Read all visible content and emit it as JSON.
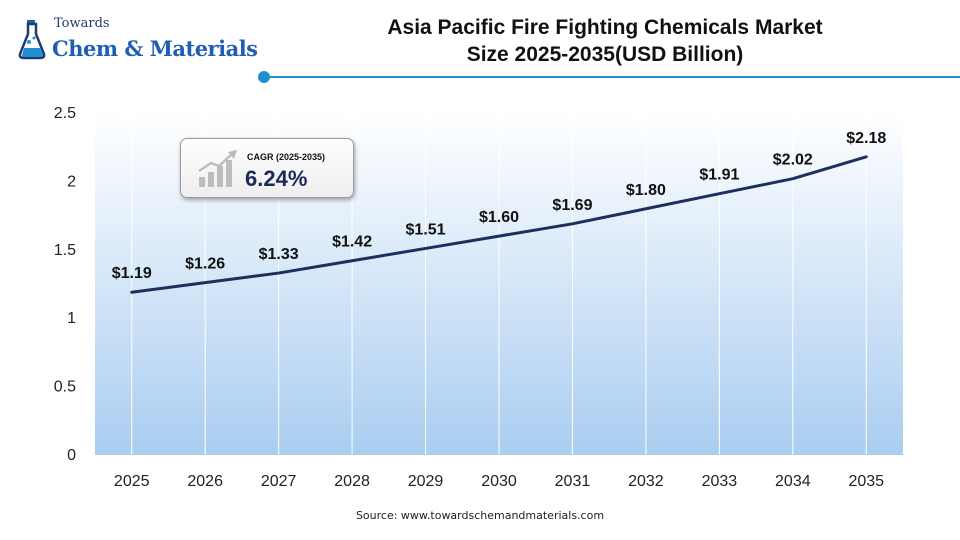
{
  "logo": {
    "line1": "Towards",
    "line2": "Chem & Materials",
    "icon": "flask-icon"
  },
  "title": {
    "line1": "Asia Pacific Fire Fighting Chemicals Market",
    "line2": "Size 2025-2035(USD Billion)"
  },
  "cagr": {
    "label": "CAGR (2025-2035)",
    "value": "6.24%",
    "icon": "growth-bars-icon"
  },
  "source": "Source: www.towardschemandmaterials.com",
  "colors": {
    "line": "#1c2f5e",
    "area_top": "#ffffff",
    "area_bottom": "#a9cdf0",
    "accent": "#1f8fd0"
  },
  "chart_data": {
    "type": "line",
    "title": "Asia Pacific Fire Fighting Chemicals Market Size 2025-2035(USD Billion)",
    "xlabel": "",
    "ylabel": "",
    "categories": [
      "2025",
      "2026",
      "2027",
      "2028",
      "2029",
      "2030",
      "2031",
      "2032",
      "2033",
      "2034",
      "2035"
    ],
    "values": [
      1.19,
      1.26,
      1.33,
      1.42,
      1.51,
      1.6,
      1.69,
      1.8,
      1.91,
      2.02,
      2.18
    ],
    "data_labels": [
      "$1.19",
      "$1.26",
      "$1.33",
      "$1.42",
      "$1.51",
      "$1.60",
      "$1.69",
      "$1.80",
      "$1.91",
      "$2.02",
      "$2.18"
    ],
    "ylim": [
      0,
      2.5
    ],
    "yticks": [
      0,
      0.5,
      1,
      1.5,
      2,
      2.5
    ],
    "ytick_labels": [
      "0",
      "0.5",
      "1",
      "1.5",
      "2",
      "2.5"
    ],
    "grid": "vertical",
    "legend": "none"
  }
}
